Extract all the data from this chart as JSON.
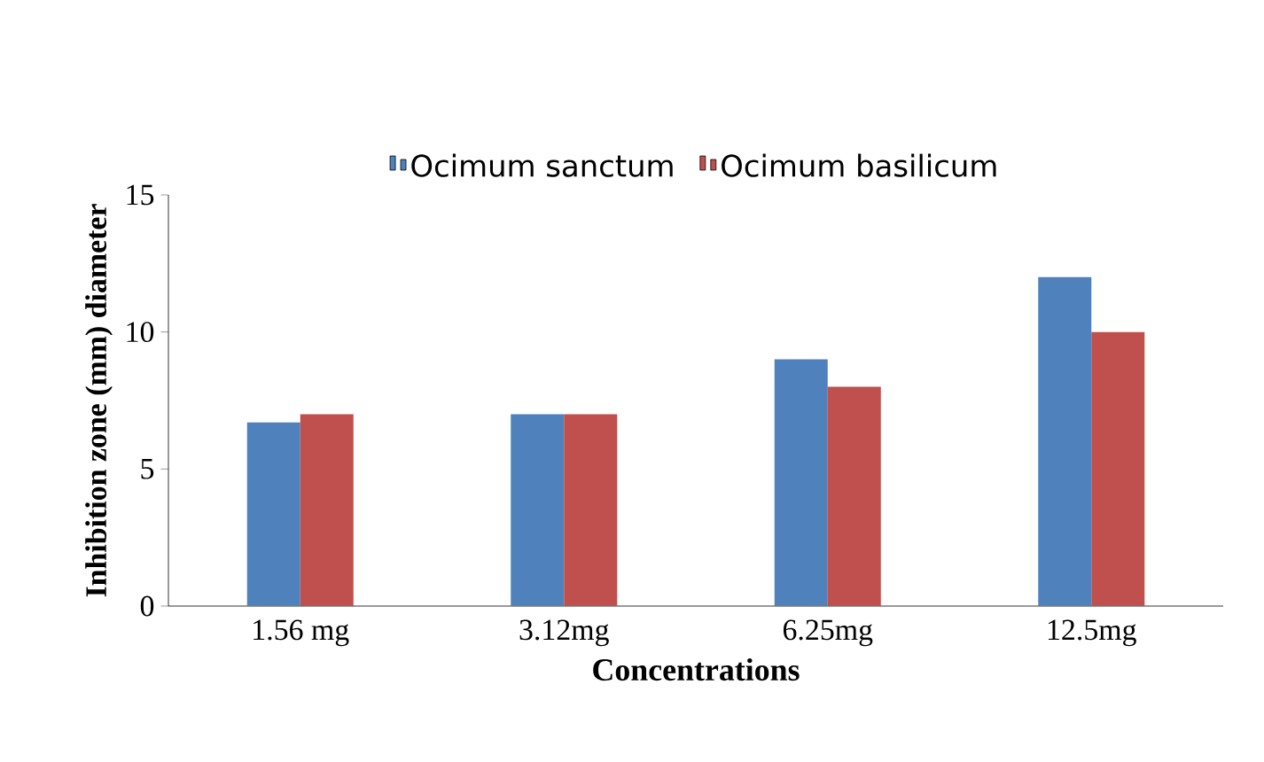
{
  "chart_data": {
    "type": "bar",
    "xlabel": "Concentrations",
    "ylabel": "Inhibition zone (mm) diameter",
    "categories": [
      "1.56 mg",
      "3.12mg",
      "6.25mg",
      "12.5mg"
    ],
    "series": [
      {
        "name": "Ocimum sanctum",
        "color": "#4f81bd",
        "values": [
          6.7,
          7,
          9,
          12
        ]
      },
      {
        "name": "Ocimum basilicum",
        "color": "#c0504d",
        "values": [
          7,
          7,
          8,
          10
        ]
      }
    ],
    "ylim": [
      0,
      15
    ],
    "yticks": [
      0,
      5,
      10,
      15
    ],
    "legend": "top",
    "grid": false
  }
}
